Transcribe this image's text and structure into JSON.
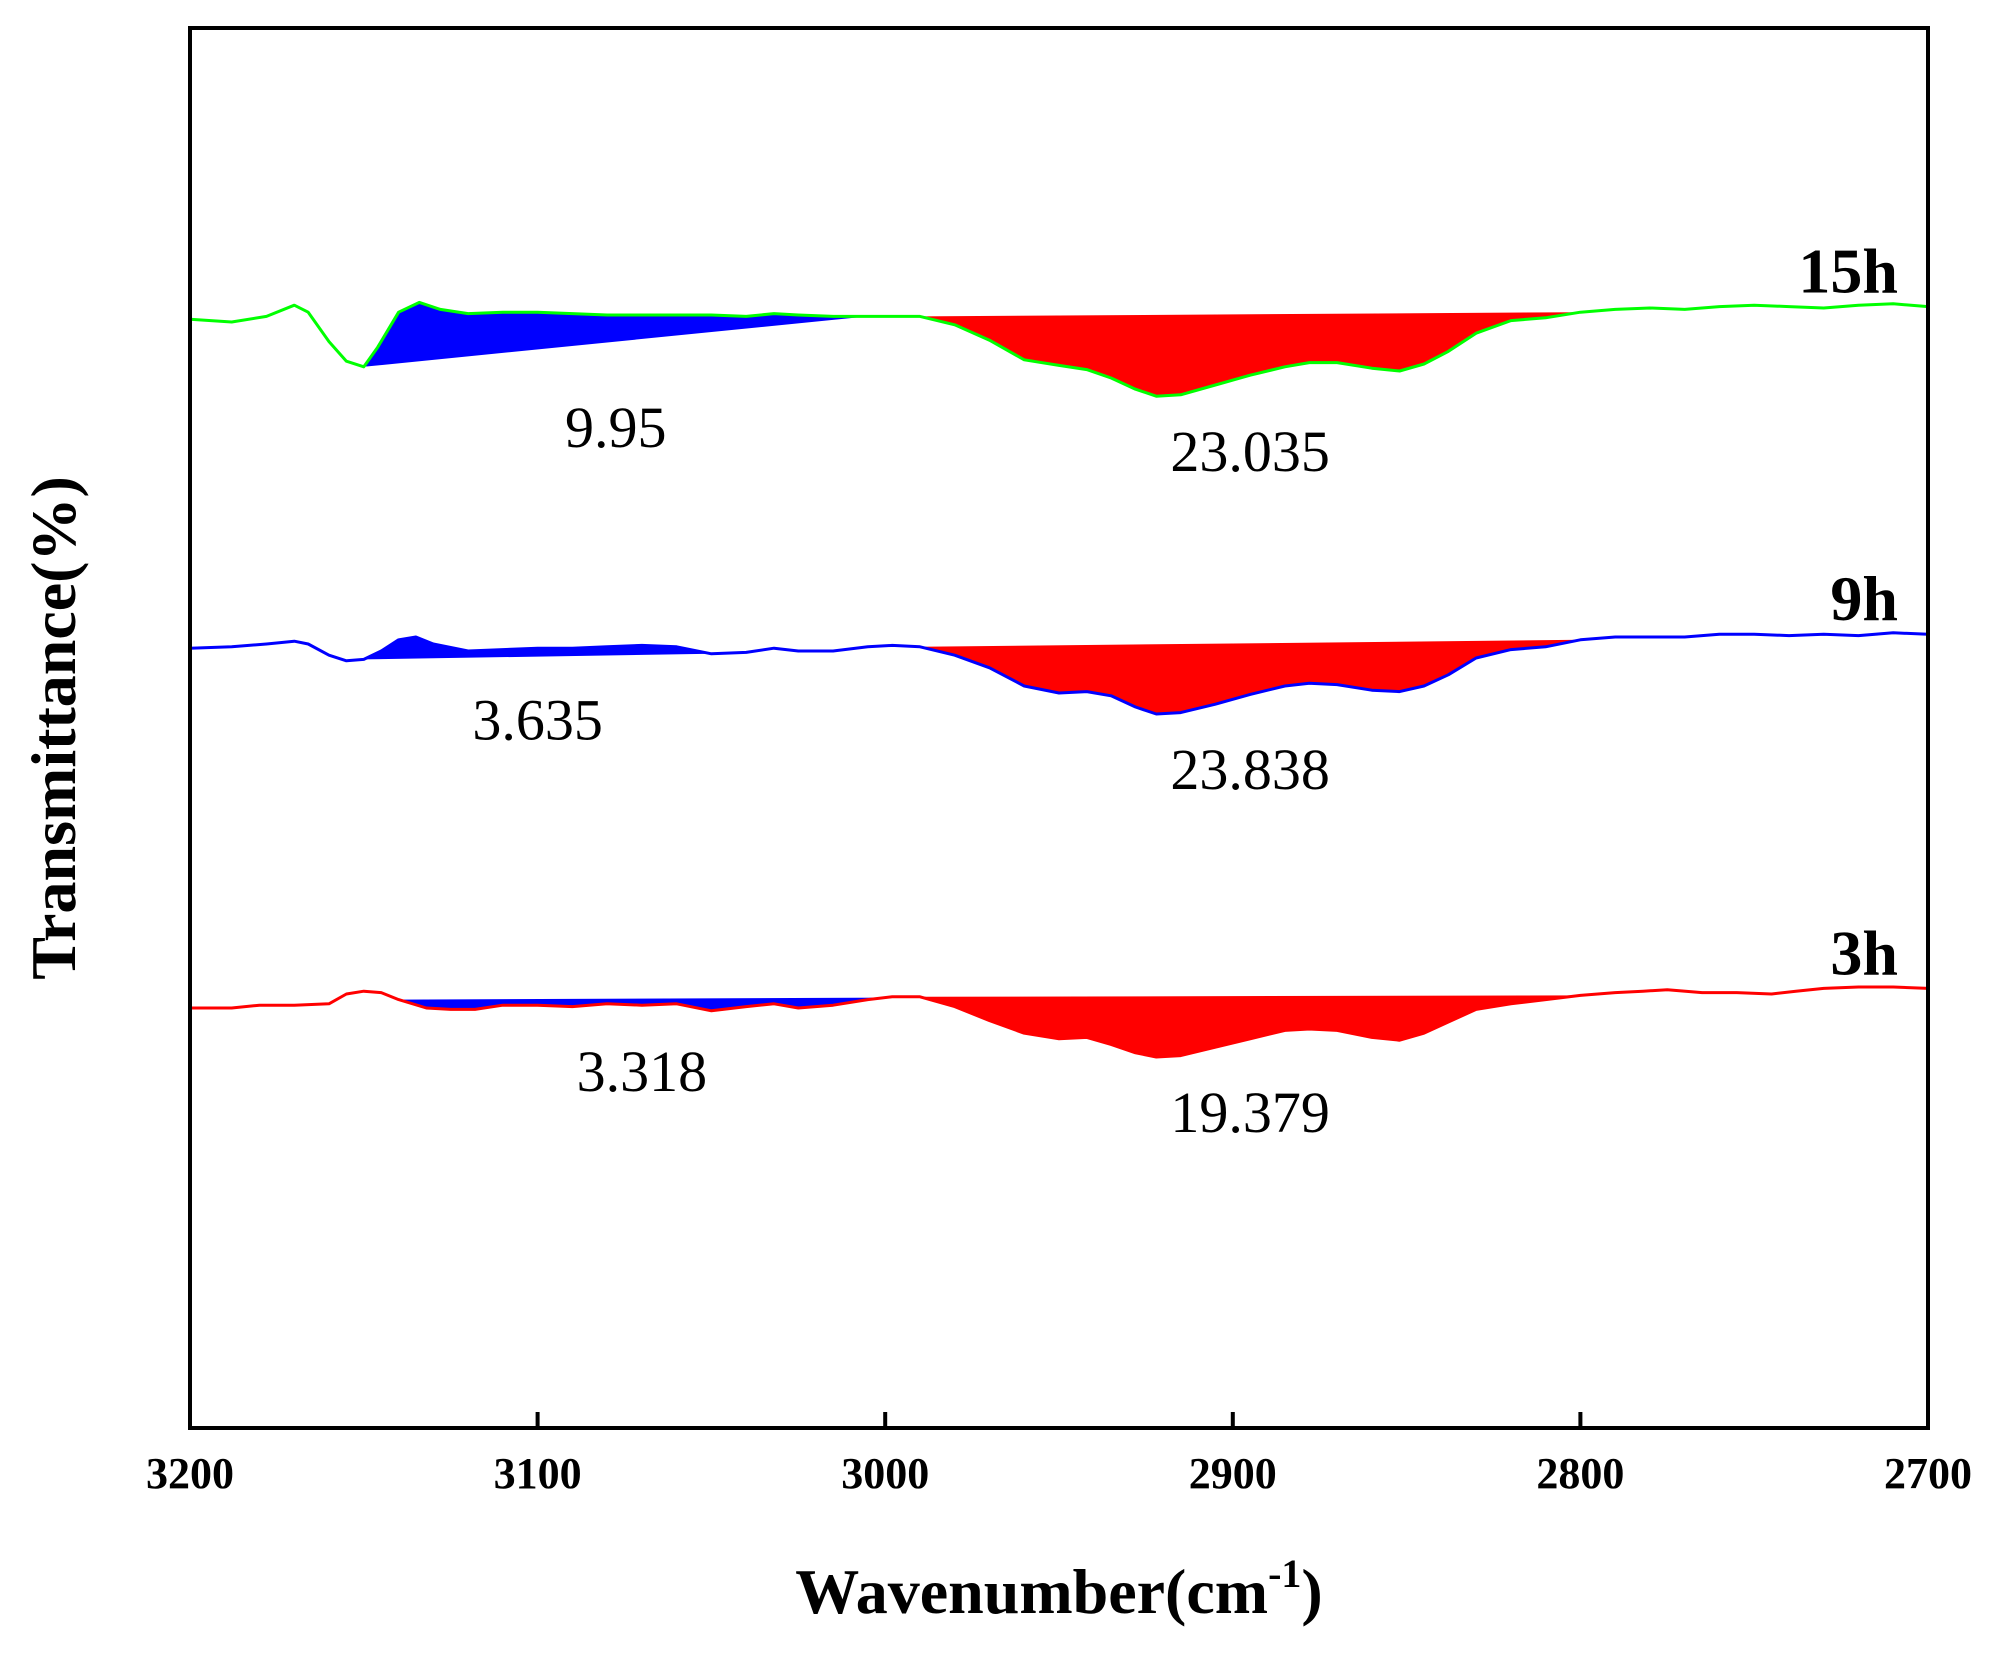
{
  "chart_data": {
    "type": "line",
    "xlabel": "Wavenumber(cm",
    "xlabel_sup": "-1",
    "xlabel_close": ")",
    "ylabel": "Transmittance(%)",
    "xlim": [
      3200,
      2700
    ],
    "x_reversed": true,
    "ylim": [
      0,
      1
    ],
    "xticks": [
      3200,
      3100,
      3000,
      2900,
      2800,
      2700
    ],
    "xtick_labels": [
      "3200",
      "3100",
      "3000",
      "2900",
      "2800",
      "2700"
    ],
    "grid": false,
    "series": [
      {
        "name": "15h",
        "color": "#00ff00",
        "x": [
          3200,
          3188,
          3178,
          3170,
          3166,
          3160,
          3155,
          3150,
          3146,
          3140,
          3134,
          3128,
          3120,
          3110,
          3100,
          3090,
          3080,
          3070,
          3060,
          3050,
          3040,
          3032,
          3025,
          3015,
          3005,
          2998,
          2990,
          2980,
          2970,
          2960,
          2950,
          2942,
          2935,
          2928,
          2922,
          2915,
          2905,
          2895,
          2885,
          2878,
          2870,
          2860,
          2852,
          2845,
          2838,
          2830,
          2820,
          2810,
          2800,
          2790,
          2780,
          2770,
          2760,
          2750,
          2740,
          2730,
          2720,
          2710,
          2700
        ],
        "y": [
          0.792,
          0.79,
          0.794,
          0.802,
          0.797,
          0.776,
          0.762,
          0.758,
          0.772,
          0.797,
          0.804,
          0.799,
          0.796,
          0.797,
          0.797,
          0.796,
          0.795,
          0.795,
          0.795,
          0.795,
          0.794,
          0.796,
          0.795,
          0.794,
          0.794,
          0.794,
          0.794,
          0.788,
          0.777,
          0.763,
          0.759,
          0.756,
          0.75,
          0.742,
          0.737,
          0.738,
          0.745,
          0.752,
          0.758,
          0.761,
          0.761,
          0.757,
          0.755,
          0.76,
          0.769,
          0.782,
          0.791,
          0.793,
          0.797,
          0.799,
          0.8,
          0.799,
          0.801,
          0.802,
          0.801,
          0.8,
          0.802,
          0.803,
          0.801
        ],
        "label": "15h",
        "shaded": [
          {
            "color": "#0000ff",
            "from": 3150,
            "to": 3005,
            "area_label": "9.95"
          },
          {
            "color": "#ff0000",
            "from": 2990,
            "to": 2800,
            "area_label": "23.035"
          }
        ]
      },
      {
        "name": "9h",
        "color": "#0000ff",
        "x": [
          3200,
          3188,
          3178,
          3170,
          3166,
          3160,
          3155,
          3150,
          3145,
          3140,
          3135,
          3130,
          3120,
          3110,
          3100,
          3090,
          3080,
          3070,
          3060,
          3050,
          3040,
          3032,
          3025,
          3015,
          3005,
          2998,
          2990,
          2980,
          2970,
          2960,
          2950,
          2942,
          2935,
          2928,
          2922,
          2915,
          2905,
          2895,
          2885,
          2878,
          2870,
          2860,
          2852,
          2845,
          2838,
          2830,
          2820,
          2810,
          2800,
          2790,
          2780,
          2770,
          2760,
          2750,
          2740,
          2730,
          2720,
          2710,
          2700
        ],
        "y": [
          0.557,
          0.558,
          0.56,
          0.562,
          0.56,
          0.552,
          0.548,
          0.549,
          0.555,
          0.563,
          0.565,
          0.56,
          0.555,
          0.556,
          0.557,
          0.557,
          0.558,
          0.559,
          0.558,
          0.553,
          0.554,
          0.557,
          0.555,
          0.555,
          0.558,
          0.559,
          0.558,
          0.552,
          0.543,
          0.53,
          0.525,
          0.526,
          0.523,
          0.515,
          0.51,
          0.511,
          0.517,
          0.524,
          0.53,
          0.532,
          0.531,
          0.527,
          0.526,
          0.53,
          0.538,
          0.55,
          0.556,
          0.558,
          0.563,
          0.565,
          0.565,
          0.565,
          0.567,
          0.567,
          0.566,
          0.567,
          0.566,
          0.568,
          0.567
        ],
        "label": "9h",
        "shaded": [
          {
            "color": "#0000ff",
            "from": 3150,
            "to": 3050,
            "area_label": "3.635"
          },
          {
            "color": "#ff0000",
            "from": 2990,
            "to": 2800,
            "area_label": "23.838"
          }
        ]
      },
      {
        "name": "3h",
        "color": "#ff0000",
        "x": [
          3200,
          3188,
          3180,
          3170,
          3160,
          3155,
          3150,
          3145,
          3140,
          3132,
          3125,
          3118,
          3110,
          3100,
          3090,
          3080,
          3070,
          3060,
          3050,
          3040,
          3032,
          3025,
          3015,
          3005,
          2998,
          2990,
          2980,
          2970,
          2960,
          2950,
          2942,
          2935,
          2928,
          2922,
          2915,
          2905,
          2895,
          2885,
          2878,
          2870,
          2860,
          2852,
          2845,
          2838,
          2830,
          2820,
          2810,
          2800,
          2790,
          2782,
          2775,
          2765,
          2755,
          2745,
          2738,
          2730,
          2720,
          2710,
          2700
        ],
        "y": [
          0.3,
          0.3,
          0.302,
          0.302,
          0.303,
          0.31,
          0.312,
          0.311,
          0.306,
          0.3,
          0.299,
          0.299,
          0.302,
          0.302,
          0.301,
          0.303,
          0.302,
          0.303,
          0.298,
          0.301,
          0.303,
          0.3,
          0.302,
          0.306,
          0.308,
          0.308,
          0.301,
          0.291,
          0.282,
          0.278,
          0.279,
          0.274,
          0.268,
          0.265,
          0.266,
          0.272,
          0.278,
          0.284,
          0.285,
          0.284,
          0.279,
          0.277,
          0.282,
          0.29,
          0.299,
          0.303,
          0.306,
          0.309,
          0.311,
          0.312,
          0.313,
          0.311,
          0.311,
          0.31,
          0.312,
          0.314,
          0.315,
          0.315,
          0.314
        ],
        "label": "3h",
        "shaded": [
          {
            "color": "#0000ff",
            "from": 3140,
            "to": 3000,
            "area_label": "3.318"
          },
          {
            "color": "#ff0000",
            "from": 2990,
            "to": 2800,
            "area_label": "19.379"
          }
        ]
      }
    ]
  }
}
